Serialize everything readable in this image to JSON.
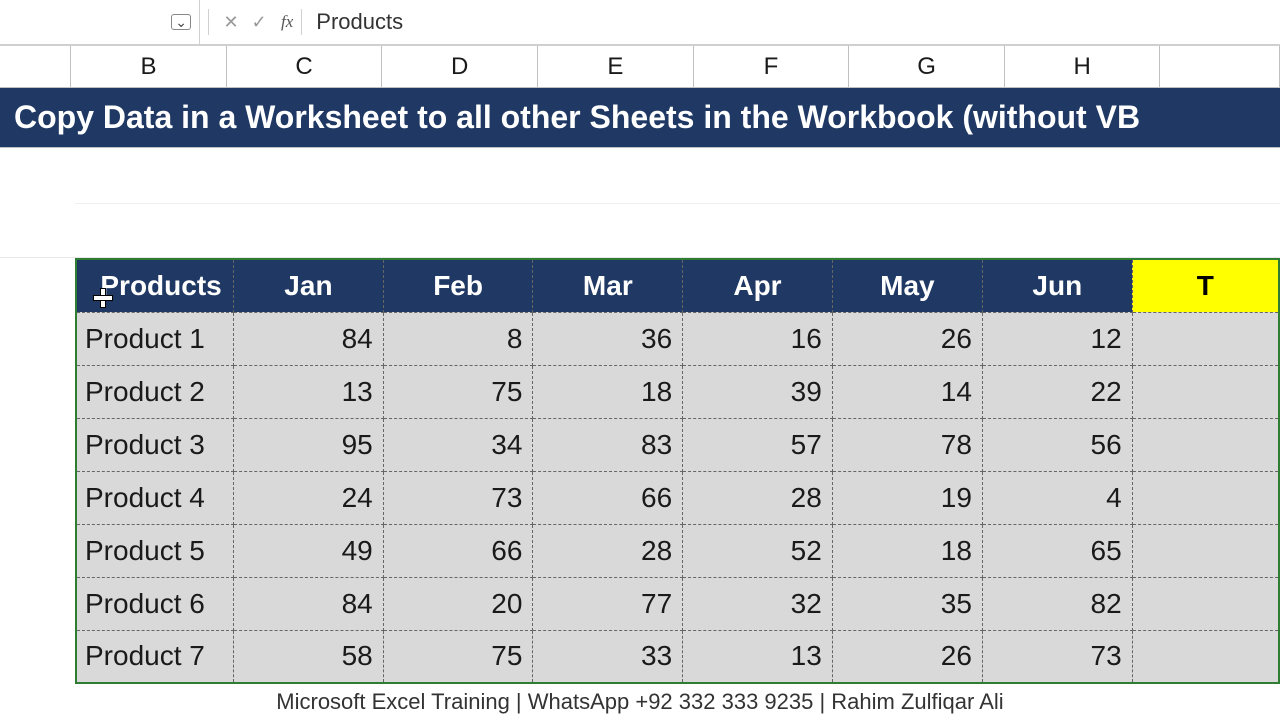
{
  "formula_bar": {
    "content": "Products",
    "name_dropdown_glyph": "⌄",
    "cancel_glyph": "✕",
    "enter_glyph": "✓",
    "fx_label": "fx"
  },
  "columns": {
    "B": "B",
    "C": "C",
    "D": "D",
    "E": "E",
    "F": "F",
    "G": "G",
    "H": "H"
  },
  "title_bar": {
    "text": "Copy Data in a Worksheet to all other Sheets in the Workbook (without VB",
    "bg_color": "#1f3864",
    "text_color": "#ffffff"
  },
  "table": {
    "header_bg": "#1f3864",
    "header_text_color": "#ffffff",
    "body_bg": "#d9d9d9",
    "selection_border": "#2e7d32",
    "total_bg": "#ffff00",
    "headers": [
      "Products",
      "Jan",
      "Feb",
      "Mar",
      "Apr",
      "May",
      "Jun"
    ],
    "total_header": "T",
    "rows": [
      {
        "name": "Product 1",
        "vals": [
          84,
          8,
          36,
          16,
          26,
          12
        ]
      },
      {
        "name": "Product 2",
        "vals": [
          13,
          75,
          18,
          39,
          14,
          22
        ]
      },
      {
        "name": "Product 3",
        "vals": [
          95,
          34,
          83,
          57,
          78,
          56
        ]
      },
      {
        "name": "Product 4",
        "vals": [
          24,
          73,
          66,
          28,
          19,
          4
        ]
      },
      {
        "name": "Product 5",
        "vals": [
          49,
          66,
          28,
          52,
          18,
          65
        ]
      },
      {
        "name": "Product 6",
        "vals": [
          84,
          20,
          77,
          32,
          35,
          82
        ]
      },
      {
        "name": "Product 7",
        "vals": [
          58,
          75,
          33,
          13,
          26,
          73
        ]
      }
    ]
  },
  "footer": "Microsoft Excel Training | WhatsApp +92 332 333 9235 | Rahim Zulfiqar Ali"
}
